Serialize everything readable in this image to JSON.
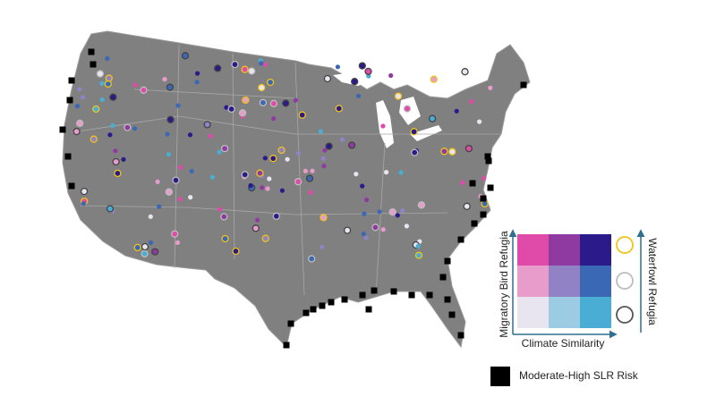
{
  "legend": {
    "y_axis": "Migratory Bird Refugia",
    "x_axis": "Climate Similarity",
    "right_axis": "Waterfowl Refugia",
    "slr_label": "Moderate-High SLR Risk"
  }
}
